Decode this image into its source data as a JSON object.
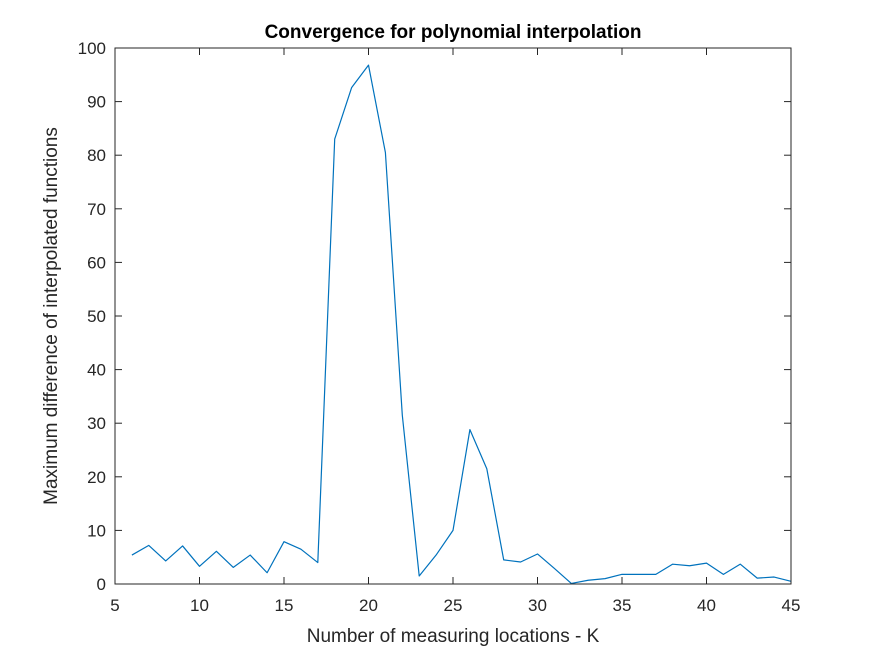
{
  "chart_data": {
    "type": "line",
    "title": "Convergence for polynomial interpolation",
    "xlabel": "Number of measuring locations - K",
    "ylabel": "Maximum difference of interpolated functions",
    "xlim": [
      5,
      45
    ],
    "ylim": [
      0,
      100
    ],
    "x_ticks": [
      5,
      10,
      15,
      20,
      25,
      30,
      35,
      40,
      45
    ],
    "y_ticks": [
      0,
      10,
      20,
      30,
      40,
      50,
      60,
      70,
      80,
      90,
      100
    ],
    "grid": false,
    "box": true,
    "line_color": "#0072BD",
    "axis_color": "#262626",
    "series": [
      {
        "x": [
          6,
          7,
          8,
          9,
          10,
          11,
          12,
          13,
          14,
          15,
          16,
          17,
          18,
          19,
          20,
          21,
          22,
          23,
          24,
          25,
          26,
          27,
          28,
          29,
          30,
          31,
          32,
          33,
          34,
          35,
          36,
          37,
          38,
          39,
          40,
          41,
          42,
          43,
          44,
          45
        ],
        "values": [
          5.4,
          7.2,
          4.3,
          7.1,
          3.3,
          6.1,
          3.1,
          5.4,
          2.1,
          7.9,
          6.5,
          4.0,
          83.0,
          92.6,
          96.8,
          80.5,
          31.5,
          1.5,
          5.4,
          10.0,
          28.8,
          21.5,
          4.5,
          4.1,
          5.6,
          2.9,
          0.1,
          0.7,
          1.0,
          1.8,
          1.8,
          1.8,
          3.7,
          3.4,
          3.9,
          1.8,
          3.7,
          1.1,
          1.3,
          0.5
        ]
      }
    ]
  }
}
